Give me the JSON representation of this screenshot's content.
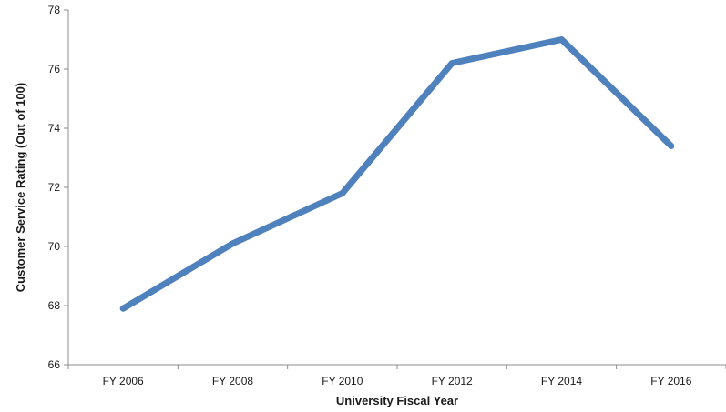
{
  "chart_data": {
    "type": "line",
    "categories": [
      "FY 2006",
      "FY 2008",
      "FY 2010",
      "FY 2012",
      "FY 2014",
      "FY 2016"
    ],
    "series": [
      {
        "values": [
          67.9,
          70.1,
          71.8,
          76.2,
          77.0,
          73.4
        ]
      }
    ],
    "title": "",
    "xlabel": "University Fiscal Year",
    "ylabel": "Customer Service Rating (Out of 100)",
    "ylim": [
      66,
      78
    ],
    "yticks": [
      66,
      68,
      70,
      72,
      74,
      76,
      78
    ],
    "grid": false,
    "legend": "none",
    "colors": {
      "series": "#4f81bd",
      "axis": "#8c8c8c",
      "text": "#1a1a1a"
    }
  }
}
